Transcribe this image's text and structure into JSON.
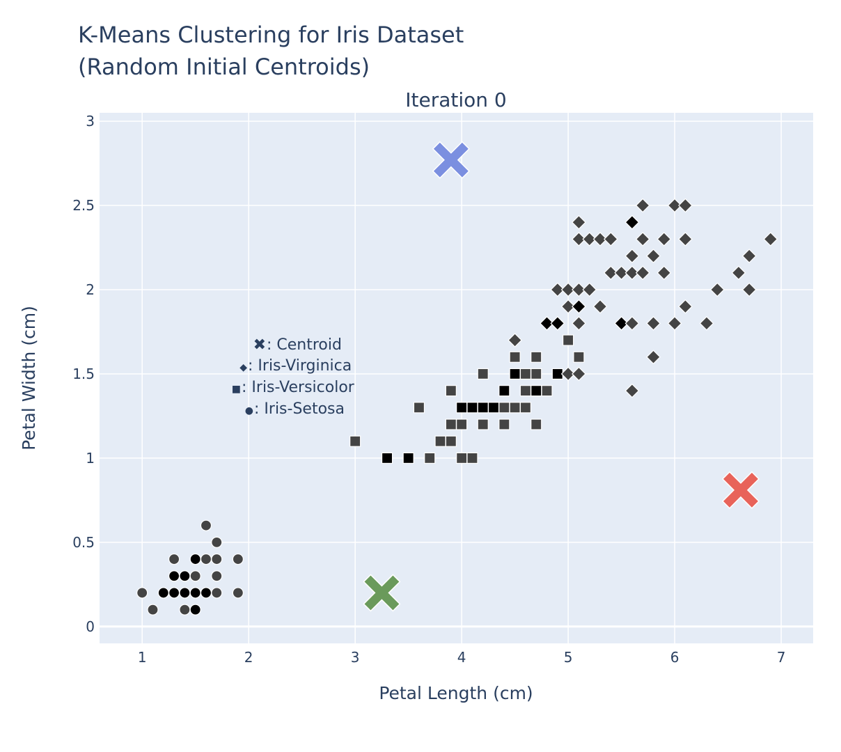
{
  "chart_data": {
    "type": "scatter",
    "title_line1": "K-Means Clustering for Iris Dataset",
    "title_line2": "(Random Initial Centroids)",
    "subtitle": "Iteration 0",
    "xlabel": "Petal Length (cm)",
    "ylabel": "Petal Width (cm)",
    "xlim": [
      0.6,
      7.3
    ],
    "ylim": [
      -0.1,
      3.05
    ],
    "xticks": [
      1,
      2,
      3,
      4,
      5,
      6,
      7
    ],
    "xtick_labels": [
      "1",
      "2",
      "3",
      "4",
      "5",
      "6",
      "7"
    ],
    "yticks": [
      0,
      0.5,
      1,
      1.5,
      2,
      2.5,
      3
    ],
    "ytick_labels": [
      "0",
      "0.5",
      "1",
      "1.5",
      "2",
      "2.5",
      "3"
    ],
    "grid": true,
    "legend": [
      {
        "symbol": "✖",
        "text": ": Centroid"
      },
      {
        "symbol": "◆",
        "text": ": Iris-Virginica"
      },
      {
        "symbol": "■",
        "text": ": Iris-Versicolor"
      },
      {
        "symbol": "●",
        "text": ": Iris-Setosa"
      }
    ],
    "colors": {
      "plot_bg": "#e5ecf6",
      "grid": "#ffffff",
      "text": "#2a3f5f",
      "point_dark": "#000000",
      "point_mid": "#444444",
      "centroid_blue": "#7b8fe0",
      "centroid_green": "#6a9a5b",
      "centroid_red": "#e8635a"
    },
    "series": [
      {
        "symbol": "circle",
        "points": [
          [
            1.0,
            0.2,
            1
          ],
          [
            1.1,
            0.1,
            1
          ],
          [
            1.2,
            0.2,
            0
          ],
          [
            1.3,
            0.2,
            0
          ],
          [
            1.3,
            0.3,
            0
          ],
          [
            1.3,
            0.4,
            1
          ],
          [
            1.4,
            0.1,
            1
          ],
          [
            1.4,
            0.2,
            0
          ],
          [
            1.4,
            0.3,
            0
          ],
          [
            1.5,
            0.1,
            0
          ],
          [
            1.5,
            0.2,
            0
          ],
          [
            1.5,
            0.3,
            1
          ],
          [
            1.5,
            0.4,
            0
          ],
          [
            1.6,
            0.2,
            0
          ],
          [
            1.6,
            0.4,
            1
          ],
          [
            1.6,
            0.6,
            1
          ],
          [
            1.7,
            0.2,
            1
          ],
          [
            1.7,
            0.3,
            1
          ],
          [
            1.7,
            0.4,
            1
          ],
          [
            1.7,
            0.5,
            1
          ],
          [
            1.9,
            0.2,
            1
          ],
          [
            1.9,
            0.4,
            1
          ]
        ]
      },
      {
        "symbol": "square",
        "points": [
          [
            3.0,
            1.1,
            1
          ],
          [
            3.3,
            1.0,
            0
          ],
          [
            3.5,
            1.0,
            0
          ],
          [
            3.6,
            1.3,
            1
          ],
          [
            3.7,
            1.0,
            1
          ],
          [
            3.8,
            1.1,
            1
          ],
          [
            3.9,
            1.1,
            1
          ],
          [
            3.9,
            1.2,
            1
          ],
          [
            3.9,
            1.4,
            1
          ],
          [
            4.0,
            1.0,
            1
          ],
          [
            4.0,
            1.2,
            1
          ],
          [
            4.0,
            1.3,
            0
          ],
          [
            4.1,
            1.0,
            1
          ],
          [
            4.1,
            1.3,
            0
          ],
          [
            4.2,
            1.2,
            1
          ],
          [
            4.2,
            1.3,
            0
          ],
          [
            4.2,
            1.5,
            1
          ],
          [
            4.3,
            1.3,
            0
          ],
          [
            4.4,
            1.2,
            1
          ],
          [
            4.4,
            1.3,
            1
          ],
          [
            4.4,
            1.4,
            0
          ],
          [
            4.5,
            1.3,
            1
          ],
          [
            4.5,
            1.5,
            0
          ],
          [
            4.5,
            1.6,
            1
          ],
          [
            4.6,
            1.3,
            1
          ],
          [
            4.6,
            1.4,
            1
          ],
          [
            4.6,
            1.5,
            1
          ],
          [
            4.7,
            1.2,
            1
          ],
          [
            4.7,
            1.4,
            0
          ],
          [
            4.7,
            1.5,
            1
          ],
          [
            4.7,
            1.6,
            1
          ],
          [
            4.8,
            1.4,
            1
          ],
          [
            4.9,
            1.5,
            0
          ],
          [
            5.0,
            1.7,
            1
          ],
          [
            5.1,
            1.6,
            1
          ]
        ]
      },
      {
        "symbol": "diamond",
        "points": [
          [
            4.5,
            1.7,
            1
          ],
          [
            4.8,
            1.8,
            0
          ],
          [
            4.9,
            1.8,
            0
          ],
          [
            4.9,
            2.0,
            1
          ],
          [
            5.0,
            1.5,
            1
          ],
          [
            5.0,
            1.9,
            1
          ],
          [
            5.0,
            2.0,
            1
          ],
          [
            5.1,
            1.5,
            1
          ],
          [
            5.1,
            1.8,
            1
          ],
          [
            5.1,
            1.9,
            0
          ],
          [
            5.1,
            2.0,
            1
          ],
          [
            5.1,
            2.3,
            1
          ],
          [
            5.1,
            2.4,
            1
          ],
          [
            5.2,
            2.0,
            1
          ],
          [
            5.2,
            2.3,
            1
          ],
          [
            5.3,
            1.9,
            1
          ],
          [
            5.3,
            2.3,
            1
          ],
          [
            5.4,
            2.1,
            1
          ],
          [
            5.4,
            2.3,
            1
          ],
          [
            5.5,
            1.8,
            0
          ],
          [
            5.5,
            2.1,
            1
          ],
          [
            5.6,
            1.4,
            1
          ],
          [
            5.6,
            1.8,
            1
          ],
          [
            5.6,
            2.1,
            1
          ],
          [
            5.6,
            2.2,
            1
          ],
          [
            5.6,
            2.4,
            0
          ],
          [
            5.7,
            2.1,
            1
          ],
          [
            5.7,
            2.3,
            1
          ],
          [
            5.7,
            2.5,
            1
          ],
          [
            5.8,
            1.6,
            1
          ],
          [
            5.8,
            1.8,
            1
          ],
          [
            5.8,
            2.2,
            1
          ],
          [
            5.9,
            2.1,
            1
          ],
          [
            5.9,
            2.3,
            1
          ],
          [
            6.0,
            1.8,
            1
          ],
          [
            6.0,
            2.5,
            1
          ],
          [
            6.1,
            1.9,
            1
          ],
          [
            6.1,
            2.3,
            1
          ],
          [
            6.1,
            2.5,
            1
          ],
          [
            6.3,
            1.8,
            1
          ],
          [
            6.4,
            2.0,
            1
          ],
          [
            6.6,
            2.1,
            1
          ],
          [
            6.7,
            2.0,
            1
          ],
          [
            6.7,
            2.2,
            1
          ],
          [
            6.9,
            2.3,
            1
          ]
        ]
      }
    ],
    "centroids": [
      {
        "x": 3.9,
        "y": 2.77,
        "color": "#7b8fe0"
      },
      {
        "x": 3.25,
        "y": 0.2,
        "color": "#6a9a5b"
      },
      {
        "x": 6.62,
        "y": 0.81,
        "color": "#e8635a"
      }
    ]
  }
}
